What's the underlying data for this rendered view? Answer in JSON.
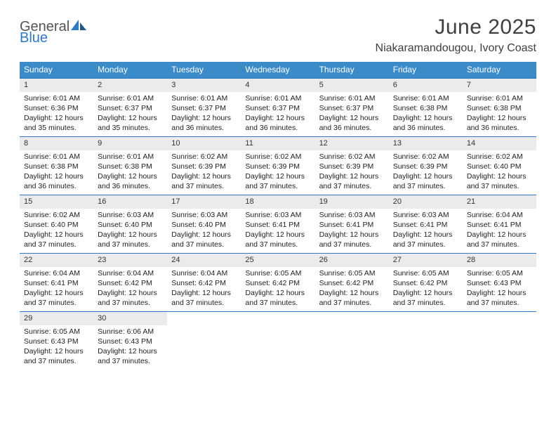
{
  "logo": {
    "line1": "General",
    "line2": "Blue"
  },
  "title": "June 2025",
  "location": "Niakaramandougou, Ivory Coast",
  "colors": {
    "header_bg": "#3b8bc9",
    "week_border": "#2f7ac2",
    "daynum_bg": "#ebebeb",
    "text": "#222222",
    "title_text": "#404040"
  },
  "weekdays": [
    "Sunday",
    "Monday",
    "Tuesday",
    "Wednesday",
    "Thursday",
    "Friday",
    "Saturday"
  ],
  "weeks": [
    [
      {
        "n": "1",
        "sunrise": "6:01 AM",
        "sunset": "6:36 PM",
        "dl1": "Daylight: 12 hours",
        "dl2": "and 35 minutes."
      },
      {
        "n": "2",
        "sunrise": "6:01 AM",
        "sunset": "6:37 PM",
        "dl1": "Daylight: 12 hours",
        "dl2": "and 35 minutes."
      },
      {
        "n": "3",
        "sunrise": "6:01 AM",
        "sunset": "6:37 PM",
        "dl1": "Daylight: 12 hours",
        "dl2": "and 36 minutes."
      },
      {
        "n": "4",
        "sunrise": "6:01 AM",
        "sunset": "6:37 PM",
        "dl1": "Daylight: 12 hours",
        "dl2": "and 36 minutes."
      },
      {
        "n": "5",
        "sunrise": "6:01 AM",
        "sunset": "6:37 PM",
        "dl1": "Daylight: 12 hours",
        "dl2": "and 36 minutes."
      },
      {
        "n": "6",
        "sunrise": "6:01 AM",
        "sunset": "6:38 PM",
        "dl1": "Daylight: 12 hours",
        "dl2": "and 36 minutes."
      },
      {
        "n": "7",
        "sunrise": "6:01 AM",
        "sunset": "6:38 PM",
        "dl1": "Daylight: 12 hours",
        "dl2": "and 36 minutes."
      }
    ],
    [
      {
        "n": "8",
        "sunrise": "6:01 AM",
        "sunset": "6:38 PM",
        "dl1": "Daylight: 12 hours",
        "dl2": "and 36 minutes."
      },
      {
        "n": "9",
        "sunrise": "6:01 AM",
        "sunset": "6:38 PM",
        "dl1": "Daylight: 12 hours",
        "dl2": "and 36 minutes."
      },
      {
        "n": "10",
        "sunrise": "6:02 AM",
        "sunset": "6:39 PM",
        "dl1": "Daylight: 12 hours",
        "dl2": "and 37 minutes."
      },
      {
        "n": "11",
        "sunrise": "6:02 AM",
        "sunset": "6:39 PM",
        "dl1": "Daylight: 12 hours",
        "dl2": "and 37 minutes."
      },
      {
        "n": "12",
        "sunrise": "6:02 AM",
        "sunset": "6:39 PM",
        "dl1": "Daylight: 12 hours",
        "dl2": "and 37 minutes."
      },
      {
        "n": "13",
        "sunrise": "6:02 AM",
        "sunset": "6:39 PM",
        "dl1": "Daylight: 12 hours",
        "dl2": "and 37 minutes."
      },
      {
        "n": "14",
        "sunrise": "6:02 AM",
        "sunset": "6:40 PM",
        "dl1": "Daylight: 12 hours",
        "dl2": "and 37 minutes."
      }
    ],
    [
      {
        "n": "15",
        "sunrise": "6:02 AM",
        "sunset": "6:40 PM",
        "dl1": "Daylight: 12 hours",
        "dl2": "and 37 minutes."
      },
      {
        "n": "16",
        "sunrise": "6:03 AM",
        "sunset": "6:40 PM",
        "dl1": "Daylight: 12 hours",
        "dl2": "and 37 minutes."
      },
      {
        "n": "17",
        "sunrise": "6:03 AM",
        "sunset": "6:40 PM",
        "dl1": "Daylight: 12 hours",
        "dl2": "and 37 minutes."
      },
      {
        "n": "18",
        "sunrise": "6:03 AM",
        "sunset": "6:41 PM",
        "dl1": "Daylight: 12 hours",
        "dl2": "and 37 minutes."
      },
      {
        "n": "19",
        "sunrise": "6:03 AM",
        "sunset": "6:41 PM",
        "dl1": "Daylight: 12 hours",
        "dl2": "and 37 minutes."
      },
      {
        "n": "20",
        "sunrise": "6:03 AM",
        "sunset": "6:41 PM",
        "dl1": "Daylight: 12 hours",
        "dl2": "and 37 minutes."
      },
      {
        "n": "21",
        "sunrise": "6:04 AM",
        "sunset": "6:41 PM",
        "dl1": "Daylight: 12 hours",
        "dl2": "and 37 minutes."
      }
    ],
    [
      {
        "n": "22",
        "sunrise": "6:04 AM",
        "sunset": "6:41 PM",
        "dl1": "Daylight: 12 hours",
        "dl2": "and 37 minutes."
      },
      {
        "n": "23",
        "sunrise": "6:04 AM",
        "sunset": "6:42 PM",
        "dl1": "Daylight: 12 hours",
        "dl2": "and 37 minutes."
      },
      {
        "n": "24",
        "sunrise": "6:04 AM",
        "sunset": "6:42 PM",
        "dl1": "Daylight: 12 hours",
        "dl2": "and 37 minutes."
      },
      {
        "n": "25",
        "sunrise": "6:05 AM",
        "sunset": "6:42 PM",
        "dl1": "Daylight: 12 hours",
        "dl2": "and 37 minutes."
      },
      {
        "n": "26",
        "sunrise": "6:05 AM",
        "sunset": "6:42 PM",
        "dl1": "Daylight: 12 hours",
        "dl2": "and 37 minutes."
      },
      {
        "n": "27",
        "sunrise": "6:05 AM",
        "sunset": "6:42 PM",
        "dl1": "Daylight: 12 hours",
        "dl2": "and 37 minutes."
      },
      {
        "n": "28",
        "sunrise": "6:05 AM",
        "sunset": "6:43 PM",
        "dl1": "Daylight: 12 hours",
        "dl2": "and 37 minutes."
      }
    ],
    [
      {
        "n": "29",
        "sunrise": "6:05 AM",
        "sunset": "6:43 PM",
        "dl1": "Daylight: 12 hours",
        "dl2": "and 37 minutes."
      },
      {
        "n": "30",
        "sunrise": "6:06 AM",
        "sunset": "6:43 PM",
        "dl1": "Daylight: 12 hours",
        "dl2": "and 37 minutes."
      },
      null,
      null,
      null,
      null,
      null
    ]
  ],
  "labels": {
    "sunrise_prefix": "Sunrise: ",
    "sunset_prefix": "Sunset: "
  }
}
